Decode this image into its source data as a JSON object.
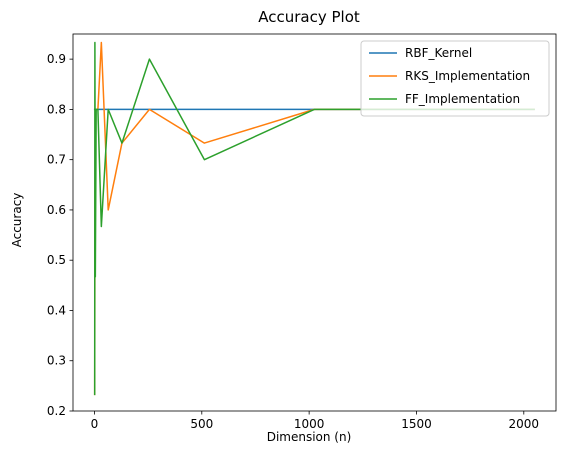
{
  "chart_data": {
    "type": "line",
    "title": "Accuracy Plot",
    "xlabel": "Dimension (n)",
    "ylabel": "Accuracy",
    "xlim": [
      -100,
      2150
    ],
    "ylim": [
      0.2,
      0.95
    ],
    "xticks": [
      0,
      500,
      1000,
      1500,
      2000
    ],
    "yticks": [
      0.2,
      0.3,
      0.4,
      0.5,
      0.6,
      0.7,
      0.8,
      0.9
    ],
    "grid": false,
    "legend_position": "top-right",
    "series": [
      {
        "name": "RBF_Kernel",
        "color": "#1f77b4",
        "x": [
          1,
          2,
          4,
          8,
          16,
          32,
          64,
          128,
          256,
          512,
          1024,
          2048
        ],
        "y": [
          0.8,
          0.8,
          0.8,
          0.8,
          0.8,
          0.8,
          0.8,
          0.8,
          0.8,
          0.8,
          0.8,
          0.8
        ]
      },
      {
        "name": "RKS_Implementation",
        "color": "#ff7f0e",
        "x": [
          1,
          2,
          4,
          8,
          16,
          32,
          64,
          128,
          256,
          512,
          1024,
          2048
        ],
        "y": [
          0.233,
          0.5,
          0.8,
          0.8,
          0.8,
          0.933,
          0.6,
          0.733,
          0.8,
          0.733,
          0.8,
          0.8
        ]
      },
      {
        "name": "FF_Implementation",
        "color": "#2ca02c",
        "x": [
          1,
          2,
          4,
          8,
          16,
          32,
          64,
          128,
          256,
          512,
          1024,
          2048
        ],
        "y": [
          0.233,
          0.933,
          0.467,
          0.8,
          0.8,
          0.567,
          0.8,
          0.733,
          0.9,
          0.7,
          0.8,
          0.8
        ]
      }
    ]
  }
}
